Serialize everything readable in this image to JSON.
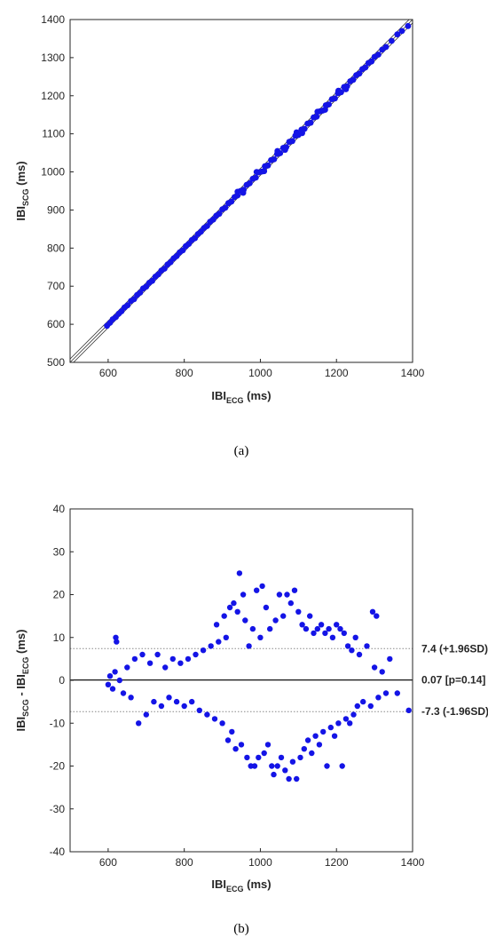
{
  "chart_data": [
    {
      "panel_label": "(a)",
      "type": "scatter",
      "title": "",
      "xlabel": {
        "main": "IBI",
        "sub": "ECG",
        "unit": " (ms)"
      },
      "ylabel": {
        "main": "IBI",
        "sub": "SCG",
        "unit": " (ms)"
      },
      "xlim": [
        500,
        1400
      ],
      "ylim": [
        500,
        1400
      ],
      "xticks": [
        "600",
        "800",
        "1000",
        "1200",
        "1400"
      ],
      "yticks": [
        "500",
        "600",
        "700",
        "800",
        "900",
        "1000",
        "1100",
        "1200",
        "1300",
        "1400"
      ],
      "grid": false,
      "point_color": "#1414e6",
      "reference_lines": [
        {
          "type": "identity",
          "offset": 0
        },
        {
          "type": "identity",
          "offset": -9
        },
        {
          "type": "identity",
          "offset": 9
        }
      ],
      "points": [
        [
          597,
          596
        ],
        [
          605,
          604
        ],
        [
          612,
          613
        ],
        [
          620,
          619
        ],
        [
          628,
          628
        ],
        [
          635,
          634
        ],
        [
          643,
          644
        ],
        [
          651,
          650
        ],
        [
          660,
          661
        ],
        [
          668,
          666
        ],
        [
          676,
          677
        ],
        [
          684,
          683
        ],
        [
          692,
          694
        ],
        [
          700,
          699
        ],
        [
          708,
          709
        ],
        [
          716,
          714
        ],
        [
          724,
          725
        ],
        [
          732,
          731
        ],
        [
          740,
          741
        ],
        [
          748,
          746
        ],
        [
          756,
          757
        ],
        [
          764,
          763
        ],
        [
          772,
          773
        ],
        [
          780,
          779
        ],
        [
          788,
          789
        ],
        [
          796,
          794
        ],
        [
          804,
          805
        ],
        [
          812,
          811
        ],
        [
          820,
          821
        ],
        [
          828,
          826
        ],
        [
          836,
          837
        ],
        [
          844,
          843
        ],
        [
          852,
          853
        ],
        [
          860,
          858
        ],
        [
          868,
          869
        ],
        [
          876,
          875
        ],
        [
          884,
          885
        ],
        [
          892,
          890
        ],
        [
          900,
          902
        ],
        [
          908,
          906
        ],
        [
          916,
          918
        ],
        [
          924,
          922
        ],
        [
          932,
          934
        ],
        [
          940,
          938
        ],
        [
          948,
          950
        ],
        [
          956,
          953
        ],
        [
          964,
          966
        ],
        [
          972,
          970
        ],
        [
          980,
          982
        ],
        [
          988,
          985
        ],
        [
          996,
          999
        ],
        [
          1004,
          1001
        ],
        [
          1012,
          1015
        ],
        [
          1020,
          1017
        ],
        [
          1028,
          1031
        ],
        [
          1036,
          1033
        ],
        [
          1044,
          1047
        ],
        [
          1052,
          1049
        ],
        [
          1060,
          1063
        ],
        [
          1068,
          1065
        ],
        [
          1076,
          1079
        ],
        [
          1084,
          1081
        ],
        [
          1092,
          1095
        ],
        [
          1100,
          1097
        ],
        [
          1108,
          1111
        ],
        [
          1116,
          1113
        ],
        [
          1124,
          1127
        ],
        [
          1132,
          1129
        ],
        [
          1140,
          1143
        ],
        [
          1148,
          1145
        ],
        [
          1156,
          1159
        ],
        [
          1164,
          1161
        ],
        [
          1172,
          1175
        ],
        [
          1180,
          1177
        ],
        [
          1188,
          1191
        ],
        [
          1196,
          1193
        ],
        [
          1204,
          1207
        ],
        [
          1212,
          1209
        ],
        [
          1220,
          1223
        ],
        [
          1228,
          1225
        ],
        [
          1236,
          1238
        ],
        [
          1244,
          1242
        ],
        [
          1252,
          1254
        ],
        [
          1260,
          1258
        ],
        [
          1268,
          1270
        ],
        [
          1276,
          1274
        ],
        [
          1284,
          1286
        ],
        [
          1292,
          1290
        ],
        [
          1300,
          1302
        ],
        [
          1310,
          1308
        ],
        [
          1320,
          1321
        ],
        [
          1330,
          1328
        ],
        [
          1345,
          1344
        ],
        [
          1360,
          1361
        ],
        [
          1372,
          1370
        ],
        [
          1388,
          1383
        ],
        [
          940,
          948
        ],
        [
          955,
          945
        ],
        [
          990,
          1000
        ],
        [
          1010,
          1002
        ],
        [
          1045,
          1055
        ],
        [
          1065,
          1058
        ],
        [
          1095,
          1104
        ],
        [
          1110,
          1102
        ],
        [
          1150,
          1158
        ],
        [
          1170,
          1163
        ],
        [
          1205,
          1213
        ],
        [
          1225,
          1217
        ]
      ]
    },
    {
      "panel_label": "(b)",
      "type": "scatter",
      "title": "",
      "xlabel": {
        "main": "IBI",
        "sub": "ECG",
        "unit": " (ms)"
      },
      "ylabel": {
        "main1": "IBI",
        "sub1": "SCG",
        "mid": " - IBI",
        "sub2": "ECG",
        "unit": " (ms)"
      },
      "xlim": [
        500,
        1400
      ],
      "ylim": [
        -40,
        40
      ],
      "xticks": [
        "600",
        "800",
        "1000",
        "1200",
        "1400"
      ],
      "yticks": [
        "-40",
        "-30",
        "-20",
        "-10",
        "0",
        "10",
        "20",
        "30",
        "40"
      ],
      "grid": false,
      "point_color": "#1414e6",
      "mean_line": {
        "value": 0.07,
        "label": "0.07 [p=0.14]"
      },
      "limits_of_agreement": [
        {
          "value": 7.4,
          "label": "7.4 (+1.96SD)"
        },
        {
          "value": -7.3,
          "label": "-7.3 (-1.96SD)"
        }
      ],
      "points": [
        [
          600,
          -1
        ],
        [
          605,
          1
        ],
        [
          612,
          -2
        ],
        [
          618,
          2
        ],
        [
          620,
          10
        ],
        [
          622,
          9
        ],
        [
          630,
          0
        ],
        [
          640,
          -3
        ],
        [
          650,
          3
        ],
        [
          660,
          -4
        ],
        [
          670,
          5
        ],
        [
          680,
          -10
        ],
        [
          690,
          6
        ],
        [
          700,
          -8
        ],
        [
          710,
          4
        ],
        [
          720,
          -5
        ],
        [
          730,
          6
        ],
        [
          740,
          -6
        ],
        [
          750,
          3
        ],
        [
          760,
          -4
        ],
        [
          770,
          5
        ],
        [
          780,
          -5
        ],
        [
          790,
          4
        ],
        [
          800,
          -6
        ],
        [
          810,
          5
        ],
        [
          820,
          -5
        ],
        [
          830,
          6
        ],
        [
          840,
          -7
        ],
        [
          850,
          7
        ],
        [
          860,
          -8
        ],
        [
          870,
          8
        ],
        [
          880,
          -9
        ],
        [
          885,
          13
        ],
        [
          890,
          9
        ],
        [
          900,
          -10
        ],
        [
          905,
          15
        ],
        [
          910,
          10
        ],
        [
          915,
          -14
        ],
        [
          920,
          17
        ],
        [
          925,
          -12
        ],
        [
          930,
          18
        ],
        [
          935,
          -16
        ],
        [
          940,
          16
        ],
        [
          945,
          25
        ],
        [
          950,
          -15
        ],
        [
          955,
          20
        ],
        [
          960,
          14
        ],
        [
          965,
          -18
        ],
        [
          970,
          8
        ],
        [
          975,
          -20
        ],
        [
          980,
          12
        ],
        [
          985,
          -20
        ],
        [
          990,
          21
        ],
        [
          995,
          -18
        ],
        [
          1000,
          10
        ],
        [
          1005,
          22
        ],
        [
          1010,
          -17
        ],
        [
          1015,
          17
        ],
        [
          1020,
          -15
        ],
        [
          1025,
          12
        ],
        [
          1030,
          -20
        ],
        [
          1035,
          -22
        ],
        [
          1040,
          14
        ],
        [
          1045,
          -20
        ],
        [
          1050,
          20
        ],
        [
          1055,
          -18
        ],
        [
          1060,
          15
        ],
        [
          1065,
          -21
        ],
        [
          1070,
          20
        ],
        [
          1075,
          -23
        ],
        [
          1080,
          18
        ],
        [
          1085,
          -19
        ],
        [
          1090,
          21
        ],
        [
          1095,
          -23
        ],
        [
          1100,
          16
        ],
        [
          1105,
          -18
        ],
        [
          1110,
          13
        ],
        [
          1115,
          -16
        ],
        [
          1120,
          12
        ],
        [
          1125,
          -14
        ],
        [
          1130,
          15
        ],
        [
          1135,
          -17
        ],
        [
          1140,
          11
        ],
        [
          1145,
          -13
        ],
        [
          1150,
          12
        ],
        [
          1155,
          -15
        ],
        [
          1160,
          13
        ],
        [
          1165,
          -12
        ],
        [
          1170,
          11
        ],
        [
          1175,
          -20
        ],
        [
          1180,
          12
        ],
        [
          1185,
          -11
        ],
        [
          1190,
          10
        ],
        [
          1195,
          -13
        ],
        [
          1200,
          13
        ],
        [
          1205,
          -10
        ],
        [
          1210,
          12
        ],
        [
          1215,
          -20
        ],
        [
          1220,
          11
        ],
        [
          1225,
          -9
        ],
        [
          1230,
          8
        ],
        [
          1235,
          -10
        ],
        [
          1240,
          7
        ],
        [
          1245,
          -8
        ],
        [
          1250,
          10
        ],
        [
          1255,
          -6
        ],
        [
          1260,
          6
        ],
        [
          1270,
          -5
        ],
        [
          1280,
          8
        ],
        [
          1290,
          -6
        ],
        [
          1295,
          16
        ],
        [
          1300,
          3
        ],
        [
          1305,
          15
        ],
        [
          1310,
          -4
        ],
        [
          1320,
          2
        ],
        [
          1330,
          -3
        ],
        [
          1340,
          5
        ],
        [
          1360,
          -3
        ],
        [
          1390,
          -7
        ]
      ]
    }
  ]
}
